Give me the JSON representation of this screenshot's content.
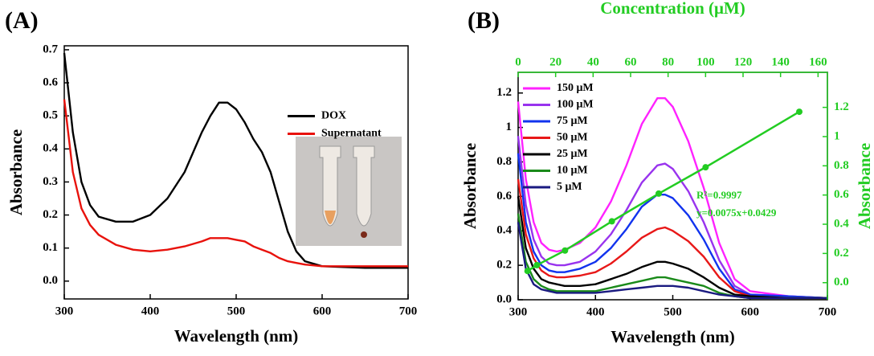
{
  "chart_data": [
    {
      "type": "line",
      "title": "(A)",
      "xlabel": "Wavelength (nm)",
      "ylabel": "Absorbance",
      "xlim": [
        300,
        700
      ],
      "xticks": [
        300,
        400,
        500,
        600,
        700
      ],
      "ylim": [
        -0.054,
        0.712
      ],
      "yticks": [
        {
          "value": 0,
          "label": "0.0"
        },
        0.1,
        0.2,
        0.3,
        0.4,
        0.5,
        0.6,
        0.7
      ],
      "legend": "center right",
      "x": [
        300,
        310,
        320,
        330,
        340,
        360,
        380,
        400,
        420,
        440,
        460,
        470,
        480,
        490,
        500,
        510,
        520,
        530,
        540,
        550,
        560,
        570,
        580,
        600,
        650,
        700
      ],
      "series": [
        {
          "name": "DOX",
          "color": "#000000",
          "values": [
            0.69,
            0.45,
            0.3,
            0.23,
            0.195,
            0.18,
            0.18,
            0.2,
            0.25,
            0.33,
            0.45,
            0.5,
            0.54,
            0.54,
            0.52,
            0.48,
            0.43,
            0.39,
            0.33,
            0.24,
            0.15,
            0.09,
            0.06,
            0.045,
            0.04,
            0.04
          ]
        },
        {
          "name": "Supernatant",
          "color": "#e8120c",
          "values": [
            0.55,
            0.33,
            0.22,
            0.17,
            0.14,
            0.11,
            0.095,
            0.09,
            0.095,
            0.105,
            0.12,
            0.13,
            0.13,
            0.13,
            0.125,
            0.12,
            0.105,
            0.095,
            0.085,
            0.07,
            0.06,
            0.055,
            0.05,
            0.045,
            0.045,
            0.045
          ]
        }
      ]
    },
    {
      "type": "line",
      "title": "(B)",
      "xlabel": "Wavelength (nm)",
      "ylabel": "Absorbance",
      "x2label": "Concentration (μM)",
      "y2label": "Absorbance",
      "axis2_color": "#22cc22",
      "xlim": [
        300,
        700
      ],
      "xticks": [
        300,
        400,
        500,
        600,
        700
      ],
      "ylim": [
        0,
        1.32
      ],
      "yticks": [
        {
          "value": 0,
          "label": "0.0"
        },
        0.2,
        0.4,
        0.6,
        0.8,
        1.0,
        1.2
      ],
      "x2lim": [
        0,
        165
      ],
      "x2ticks": [
        0,
        20,
        40,
        60,
        80,
        100,
        120,
        140,
        160
      ],
      "y2lim": [
        -0.117,
        1.44
      ],
      "y2ticks": [
        {
          "value": 0,
          "label": "0.0"
        },
        0.2,
        0.4,
        0.6,
        0.8,
        1.0,
        1.2
      ],
      "legend": "upper left",
      "x": [
        300,
        310,
        320,
        330,
        340,
        350,
        360,
        380,
        400,
        420,
        440,
        460,
        480,
        490,
        500,
        520,
        540,
        560,
        580,
        600,
        650,
        700
      ],
      "series": [
        {
          "name": "150 μM",
          "color": "#ff22ff",
          "values": [
            1.15,
            0.7,
            0.45,
            0.33,
            0.29,
            0.28,
            0.29,
            0.33,
            0.42,
            0.57,
            0.78,
            1.02,
            1.17,
            1.17,
            1.12,
            0.92,
            0.65,
            0.33,
            0.12,
            0.05,
            0.02,
            0.01
          ]
        },
        {
          "name": "100 μM",
          "color": "#9933ee",
          "values": [
            0.95,
            0.55,
            0.35,
            0.25,
            0.21,
            0.2,
            0.2,
            0.22,
            0.28,
            0.38,
            0.52,
            0.68,
            0.78,
            0.79,
            0.76,
            0.63,
            0.45,
            0.23,
            0.08,
            0.03,
            0.02,
            0.01
          ]
        },
        {
          "name": "75 μM",
          "color": "#1133ee",
          "values": [
            0.85,
            0.45,
            0.28,
            0.2,
            0.17,
            0.16,
            0.16,
            0.18,
            0.22,
            0.3,
            0.41,
            0.54,
            0.61,
            0.61,
            0.59,
            0.49,
            0.35,
            0.18,
            0.06,
            0.03,
            0.02,
            0.01
          ]
        },
        {
          "name": "50 μM",
          "color": "#e81818",
          "values": [
            0.7,
            0.38,
            0.24,
            0.17,
            0.14,
            0.13,
            0.13,
            0.14,
            0.16,
            0.21,
            0.28,
            0.36,
            0.41,
            0.42,
            0.4,
            0.34,
            0.25,
            0.13,
            0.05,
            0.02,
            0.01,
            0.01
          ]
        },
        {
          "name": "25 μM",
          "color": "#000000",
          "values": [
            0.6,
            0.3,
            0.18,
            0.12,
            0.1,
            0.09,
            0.08,
            0.08,
            0.09,
            0.12,
            0.15,
            0.19,
            0.22,
            0.22,
            0.21,
            0.18,
            0.13,
            0.07,
            0.03,
            0.02,
            0.01,
            0.01
          ]
        },
        {
          "name": "10 μM",
          "color": "#1a8a1a",
          "values": [
            0.5,
            0.22,
            0.12,
            0.08,
            0.06,
            0.05,
            0.05,
            0.05,
            0.05,
            0.07,
            0.09,
            0.11,
            0.13,
            0.13,
            0.12,
            0.1,
            0.08,
            0.04,
            0.02,
            0.01,
            0.01,
            0.01
          ]
        },
        {
          "name": "5 μM",
          "color": "#1a1a80",
          "values": [
            0.45,
            0.18,
            0.09,
            0.06,
            0.05,
            0.04,
            0.04,
            0.04,
            0.04,
            0.05,
            0.06,
            0.07,
            0.08,
            0.08,
            0.08,
            0.07,
            0.05,
            0.03,
            0.02,
            0.01,
            0.01,
            0.01
          ]
        }
      ],
      "calibration": {
        "axis": "y2",
        "color": "#22cc22",
        "x": [
          5,
          10,
          25,
          50,
          75,
          100,
          150
        ],
        "values": [
          0.08,
          0.12,
          0.22,
          0.42,
          0.61,
          0.79,
          1.17
        ]
      },
      "annotations": [
        "R²=0.9997",
        "y=0.0075x+0.0429"
      ]
    }
  ]
}
